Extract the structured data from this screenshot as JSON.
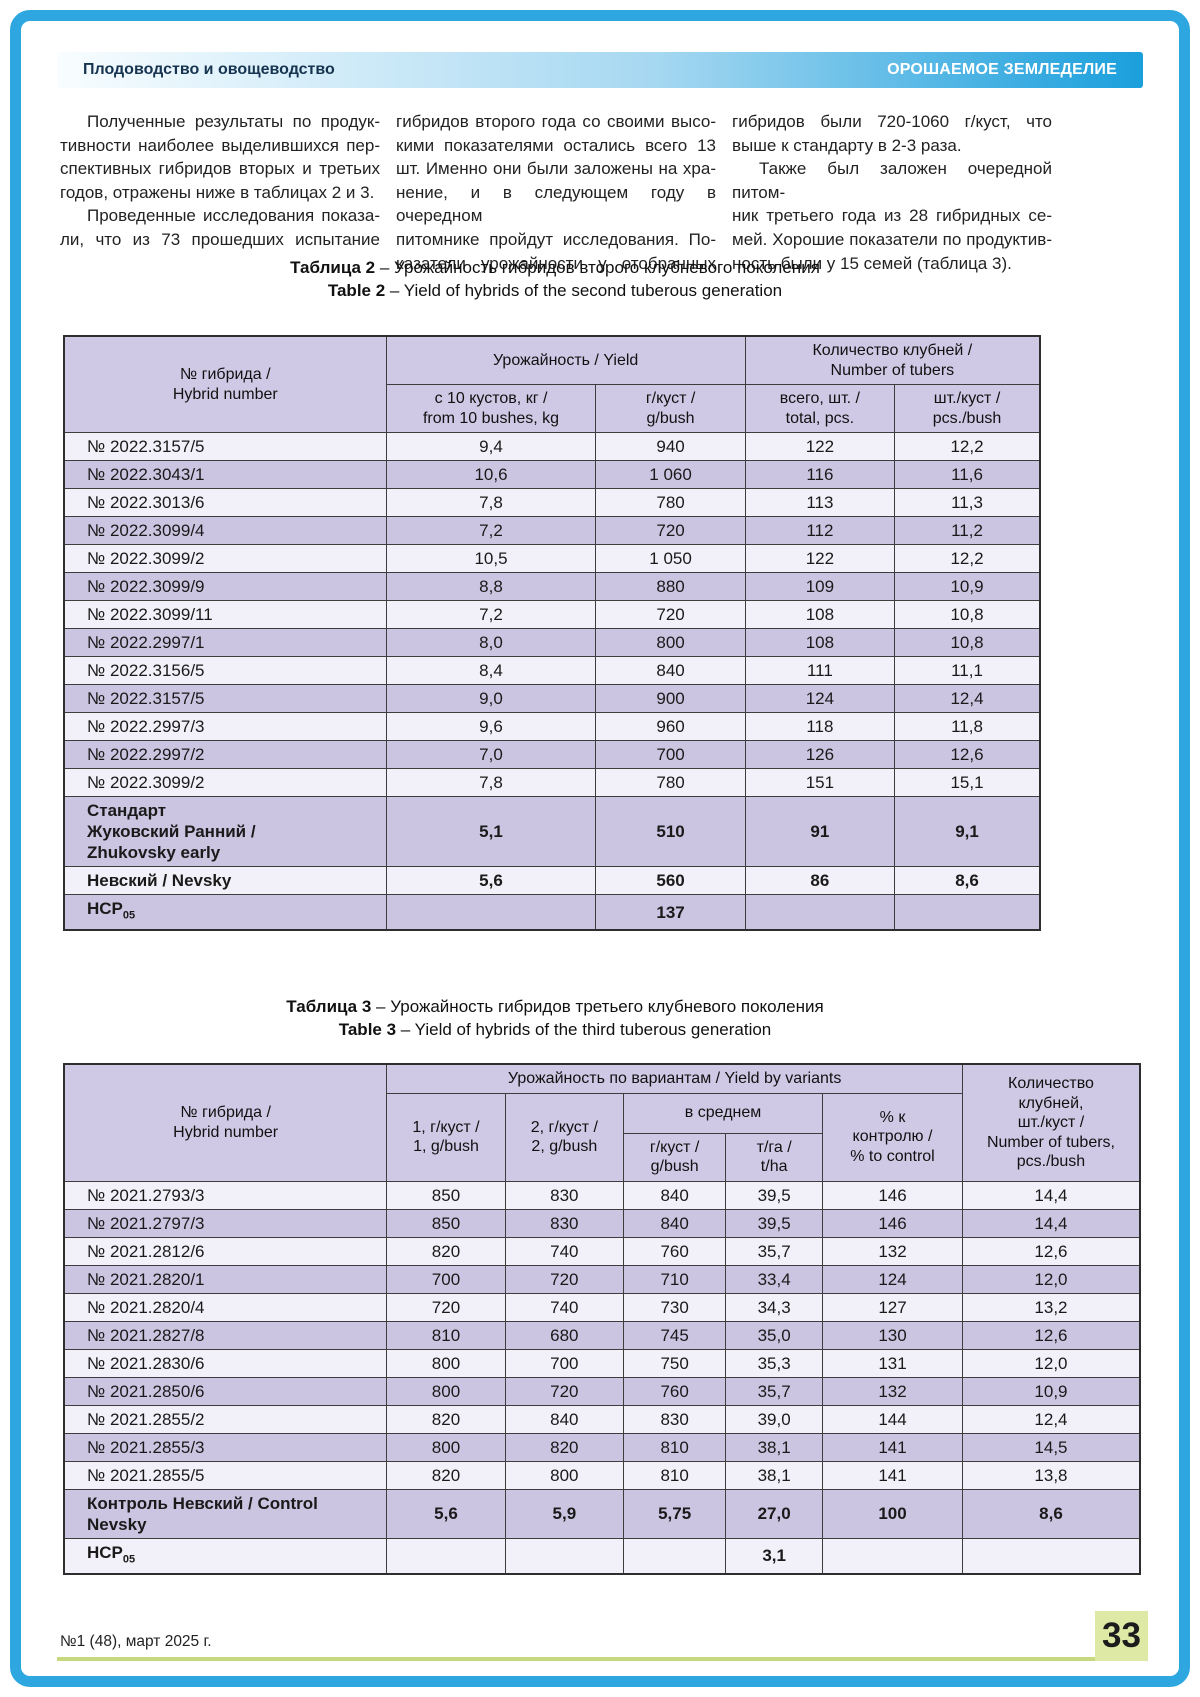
{
  "colors": {
    "frame": "#2ea7e0",
    "bar_start": "#f8fdff",
    "bar_end": "#1a9fdc",
    "bar_text_left": "#16344f",
    "bar_text_right": "#ffffff",
    "head_bg": "#cfc9e5",
    "row_dark": "#cbc5e1",
    "row_light": "#f2f0f8",
    "footer_line": "#c6d97e",
    "badge_bg": "#dfe9a6"
  },
  "header": {
    "left": "Плодоводство и овощеводство",
    "right": "ОРОШАЕМОЕ ЗЕМЛЕДЕЛИЕ"
  },
  "intro_columns": [
    {
      "lines": [
        {
          "t": "Полученные результаты по продук-",
          "ind": 1,
          "j": 1
        },
        {
          "t": "тивности наиболее выделившихся пер-",
          "j": 1
        },
        {
          "t": "спективных гибридов вторых и третьих",
          "j": 1
        },
        {
          "t": "годов, отражены ниже в таблицах 2 и 3.",
          "j": 0
        },
        {
          "t": "Проведенные исследования показа-",
          "ind": 1,
          "j": 1
        },
        {
          "t": "ли, что из 73 прошедших испытание",
          "j": 1
        }
      ]
    },
    {
      "lines": [
        {
          "t": "гибридов второго года со своими высо-",
          "j": 1
        },
        {
          "t": "кими показателями остались всего 13",
          "j": 1
        },
        {
          "t": "шт. Именно они были заложены на хра-",
          "j": 1
        },
        {
          "t": "нение, и в следующем году в очередном",
          "j": 1
        },
        {
          "t": "питомнике пройдут исследования. По-",
          "j": 1
        },
        {
          "t": "казатели урожайности у отобранных",
          "j": 1
        }
      ]
    },
    {
      "lines": [
        {
          "t": "гибридов были 720-1060 г/куст, что",
          "j": 1
        },
        {
          "t": "выше к стандарту в 2-3 раза.",
          "j": 0
        },
        {
          "t": "Также был заложен очередной питом-",
          "ind": 1,
          "j": 1
        },
        {
          "t": "ник третьего года из 28 гибридных се-",
          "j": 1
        },
        {
          "t": "мей. Хорошие показатели по продуктив-",
          "j": 1
        },
        {
          "t": "ность были у 15 семей (таблица 3).",
          "j": 0
        }
      ]
    }
  ],
  "table2": {
    "caption_ru_bold": "Таблица 2",
    "caption_ru_rest": " – Урожайность гибридов второго клубневого поколения",
    "caption_en_bold": "Table 2",
    "caption_en_rest": " – Yield of hybrids of the second tuberous generation",
    "header": {
      "hybrid": "№ гибрида /\nHybrid number",
      "yield_group": "Урожайность / Yield",
      "tubers_group": "Количество клубней /\nNumber of tubers",
      "sub": [
        "с 10 кустов, кг /\nfrom 10 bushes, kg",
        "г/куст /\ng/bush",
        "всего, шт. /\ntotal, pcs.",
        "шт./куст /\npcs./bush"
      ]
    },
    "rows": [
      {
        "name": "№ 2022.3157/5",
        "values": [
          "9,4",
          "940",
          "122",
          "12,2"
        ]
      },
      {
        "name": "№ 2022.3043/1",
        "values": [
          "10,6",
          "1 060",
          "116",
          "11,6"
        ]
      },
      {
        "name": "№ 2022.3013/6",
        "values": [
          "7,8",
          "780",
          "113",
          "11,3"
        ]
      },
      {
        "name": "№ 2022.3099/4",
        "values": [
          "7,2",
          "720",
          "112",
          "11,2"
        ]
      },
      {
        "name": "№ 2022.3099/2",
        "values": [
          "10,5",
          "1 050",
          "122",
          "12,2"
        ]
      },
      {
        "name": "№ 2022.3099/9",
        "values": [
          "8,8",
          "880",
          "109",
          "10,9"
        ]
      },
      {
        "name": "№ 2022.3099/11",
        "values": [
          "7,2",
          "720",
          "108",
          "10,8"
        ]
      },
      {
        "name": "№ 2022.2997/1",
        "values": [
          "8,0",
          "800",
          "108",
          "10,8"
        ]
      },
      {
        "name": "№ 2022.3156/5",
        "values": [
          "8,4",
          "840",
          "111",
          "11,1"
        ]
      },
      {
        "name": "№ 2022.3157/5",
        "values": [
          "9,0",
          "900",
          "124",
          "12,4"
        ]
      },
      {
        "name": "№ 2022.2997/3",
        "values": [
          "9,6",
          "960",
          "118",
          "11,8"
        ]
      },
      {
        "name": "№ 2022.2997/2",
        "values": [
          "7,0",
          "700",
          "126",
          "12,6"
        ]
      },
      {
        "name": "№ 2022.3099/2",
        "values": [
          "7,8",
          "780",
          "151",
          "15,1"
        ]
      },
      {
        "name": "Стандарт\nЖуковский Ранний /\nZhukovsky early",
        "values": [
          "5,1",
          "510",
          "91",
          "9,1"
        ],
        "bold": true
      },
      {
        "name": "Невский / Nevsky",
        "values": [
          "5,6",
          "560",
          "86",
          "8,6"
        ],
        "bold": true
      },
      {
        "name": "НСР",
        "name_sub": "05",
        "values": [
          "",
          "137",
          "",
          ""
        ],
        "bold": true
      }
    ]
  },
  "table3": {
    "caption_ru_bold": "Таблица 3",
    "caption_ru_rest": " – Урожайность гибридов третьего клубневого поколения",
    "caption_en_bold": "Table 3",
    "caption_en_rest": " – Yield of hybrids of the third tuberous generation",
    "header": {
      "hybrid": "№ гибрида /\nHybrid number",
      "yield_group": "Урожайность по вариантам / Yield by variants",
      "col1": "1, г/куст /\n1, g/bush",
      "col2": "2, г/куст /\n2, g/bush",
      "avg_group": "в среднем",
      "avg_sub": [
        "г/куст /\ng/bush",
        "т/га /\nt/ha"
      ],
      "control": "% к\nконтролю /\n% to control",
      "tubers": "Количество\nклубней,\nшт./куст /\nNumber of tubers,\npcs./bush"
    },
    "rows": [
      {
        "name": "№ 2021.2793/3",
        "values": [
          "850",
          "830",
          "840",
          "39,5",
          "146",
          "14,4"
        ]
      },
      {
        "name": "№ 2021.2797/3",
        "values": [
          "850",
          "830",
          "840",
          "39,5",
          "146",
          "14,4"
        ]
      },
      {
        "name": "№ 2021.2812/6",
        "values": [
          "820",
          "740",
          "760",
          "35,7",
          "132",
          "12,6"
        ]
      },
      {
        "name": "№ 2021.2820/1",
        "values": [
          "700",
          "720",
          "710",
          "33,4",
          "124",
          "12,0"
        ]
      },
      {
        "name": "№ 2021.2820/4",
        "values": [
          "720",
          "740",
          "730",
          "34,3",
          "127",
          "13,2"
        ]
      },
      {
        "name": "№ 2021.2827/8",
        "values": [
          "810",
          "680",
          "745",
          "35,0",
          "130",
          "12,6"
        ]
      },
      {
        "name": "№ 2021.2830/6",
        "values": [
          "800",
          "700",
          "750",
          "35,3",
          "131",
          "12,0"
        ]
      },
      {
        "name": "№ 2021.2850/6",
        "values": [
          "800",
          "720",
          "760",
          "35,7",
          "132",
          "10,9"
        ]
      },
      {
        "name": "№ 2021.2855/2",
        "values": [
          "820",
          "840",
          "830",
          "39,0",
          "144",
          "12,4"
        ]
      },
      {
        "name": "№ 2021.2855/3",
        "values": [
          "800",
          "820",
          "810",
          "38,1",
          "141",
          "14,5"
        ]
      },
      {
        "name": "№ 2021.2855/5",
        "values": [
          "820",
          "800",
          "810",
          "38,1",
          "141",
          "13,8"
        ]
      },
      {
        "name": "Контроль Невский / Control\nNevsky",
        "values": [
          "5,6",
          "5,9",
          "5,75",
          "27,0",
          "100",
          "8,6"
        ],
        "bold": true
      },
      {
        "name": "НСР",
        "name_sub": "05",
        "values": [
          "",
          "",
          "",
          "3,1",
          "",
          ""
        ],
        "bold": true
      }
    ]
  },
  "footer": {
    "issue": "№1 (48), март 2025 г.",
    "page_number": "33"
  }
}
